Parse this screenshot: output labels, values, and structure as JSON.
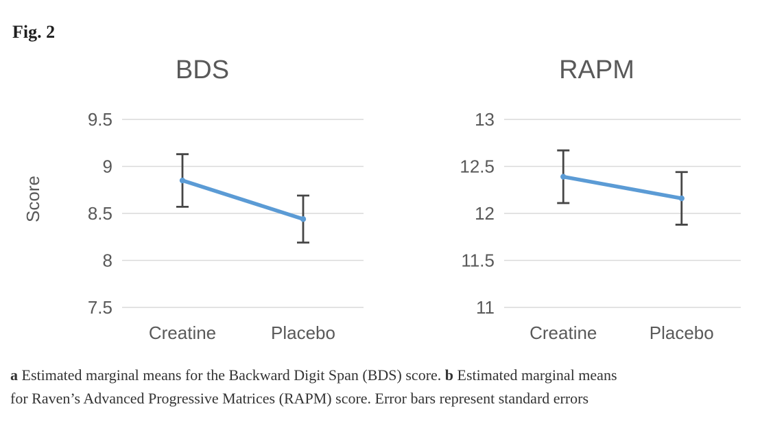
{
  "figure_label": "Fig. 2",
  "caption": {
    "lines": [
      [
        {
          "text": "a",
          "bold": true
        },
        {
          "text": " Estimated marginal means for the Backward Digit Span (BDS) score. ",
          "bold": false
        },
        {
          "text": "b",
          "bold": true
        },
        {
          "text": " Estimated marginal means",
          "bold": false
        }
      ],
      [
        {
          "text": "for Raven’s Advanced Progressive Matrices (RAPM) score. Error bars represent standard errors",
          "bold": false
        }
      ]
    ]
  },
  "colors": {
    "line": "#5B9BD5",
    "marker": "#5B9BD5",
    "error_bar": "#464646",
    "gridline": "#D9D9D9",
    "tick_label": "#595959",
    "title": "#595959",
    "background": "#ffffff"
  },
  "chart_data": [
    {
      "type": "line",
      "title": "BDS",
      "ylabel": "Score",
      "xlabel": "",
      "categories": [
        "Creatine",
        "Placebo"
      ],
      "values": [
        8.85,
        8.44
      ],
      "error_upper": [
        9.13,
        8.69
      ],
      "error_lower": [
        8.57,
        8.19
      ],
      "ylim": [
        7.5,
        9.5
      ],
      "yticks": [
        9.5,
        9,
        8.5,
        8,
        7.5
      ],
      "grid": true,
      "legend": "none",
      "annotations": "error bars = standard errors"
    },
    {
      "type": "line",
      "title": "RAPM",
      "ylabel": "",
      "xlabel": "",
      "categories": [
        "Creatine",
        "Placebo"
      ],
      "values": [
        12.39,
        12.16
      ],
      "error_upper": [
        12.67,
        12.44
      ],
      "error_lower": [
        12.11,
        11.88
      ],
      "ylim": [
        11,
        13
      ],
      "yticks": [
        13,
        12.5,
        12,
        11.5,
        11
      ],
      "grid": true,
      "legend": "none",
      "annotations": "error bars = standard errors"
    }
  ]
}
